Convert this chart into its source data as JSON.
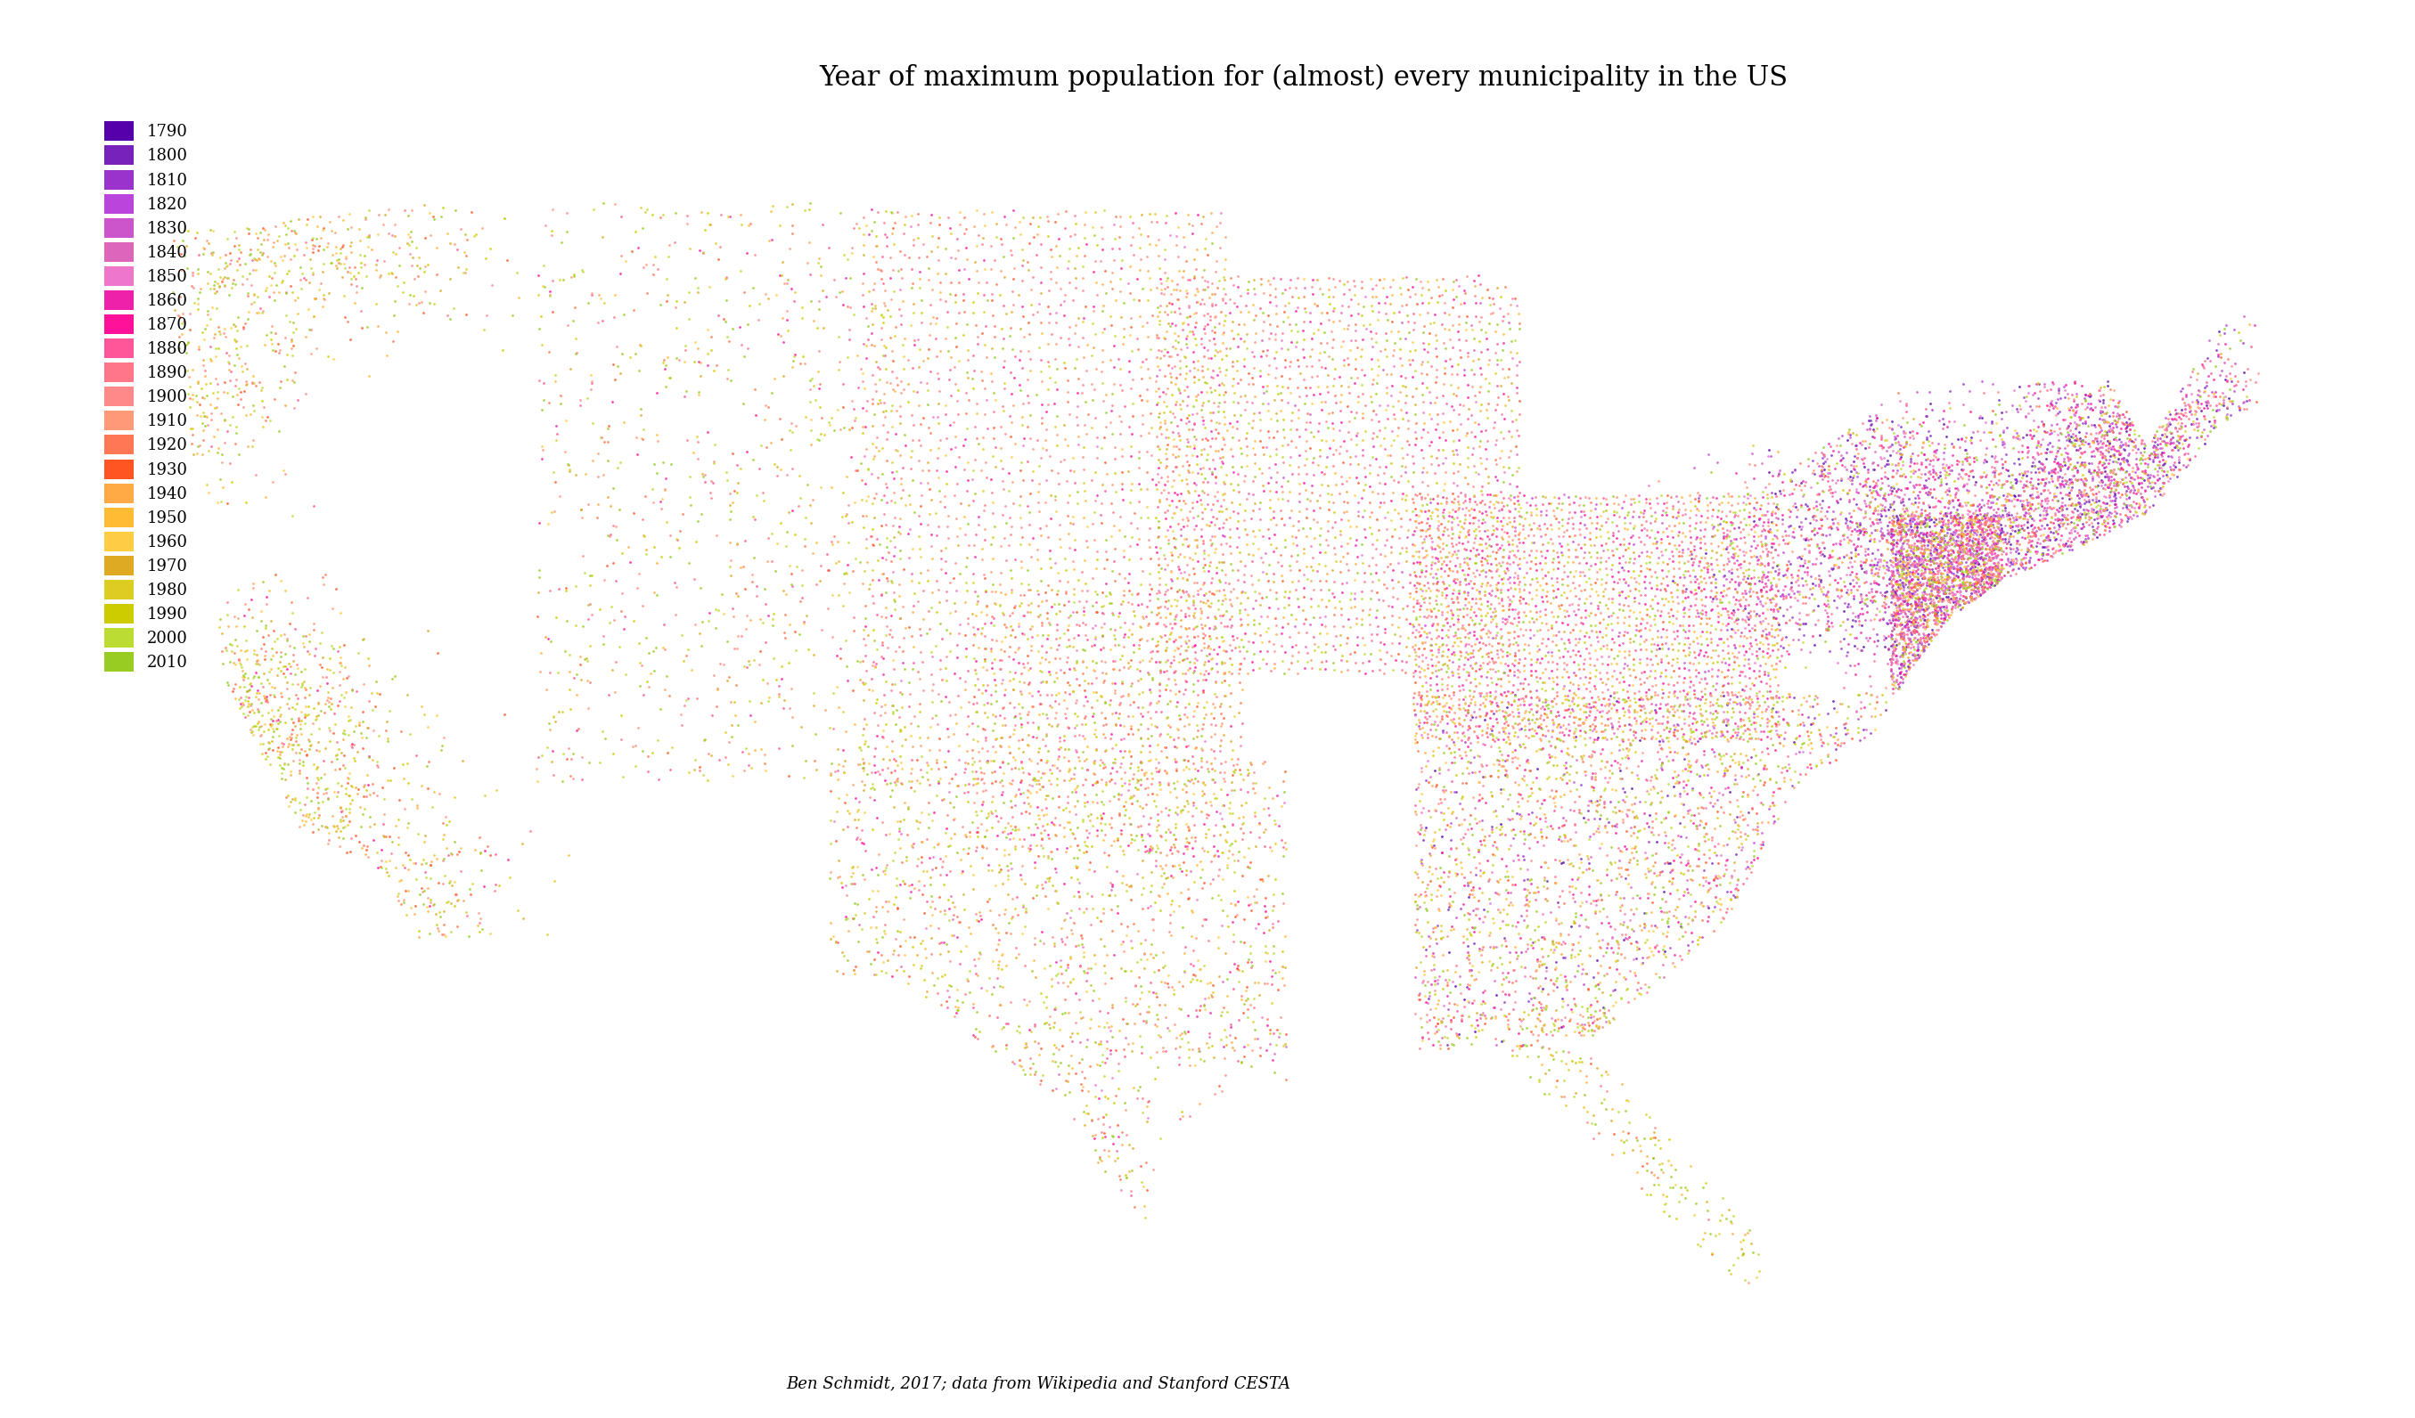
{
  "title": "Year of maximum population for (almost) every municipality in the US",
  "credit": "Ben Schmidt, 2017; data from Wikipedia and Stanford CESTA",
  "years": [
    1790,
    1800,
    1810,
    1820,
    1830,
    1840,
    1850,
    1860,
    1870,
    1880,
    1890,
    1900,
    1910,
    1920,
    1930,
    1940,
    1950,
    1960,
    1970,
    1980,
    1990,
    2000,
    2010
  ],
  "year_colors": {
    "1790": "#5500aa",
    "1800": "#7722bb",
    "1810": "#9933cc",
    "1820": "#bb44dd",
    "1830": "#cc55cc",
    "1840": "#dd66bb",
    "1850": "#ee77cc",
    "1860": "#ee22aa",
    "1870": "#ff1199",
    "1880": "#ff5599",
    "1890": "#ff7788",
    "1900": "#ff8888",
    "1910": "#ff9977",
    "1920": "#ff7755",
    "1930": "#ff5522",
    "1940": "#ffaa44",
    "1950": "#ffbb33",
    "1960": "#ffcc44",
    "1970": "#ddaa22",
    "1980": "#ddcc22",
    "1990": "#cccc00",
    "2000": "#bbdd33",
    "2010": "#99cc22"
  },
  "background_color": "#ffffff",
  "title_fontsize": 22,
  "legend_fontsize": 13,
  "marker_size": 4,
  "marker_alpha": 0.8,
  "lon_min": -126,
  "lon_max": -64,
  "lat_min": 23,
  "lat_max": 51
}
